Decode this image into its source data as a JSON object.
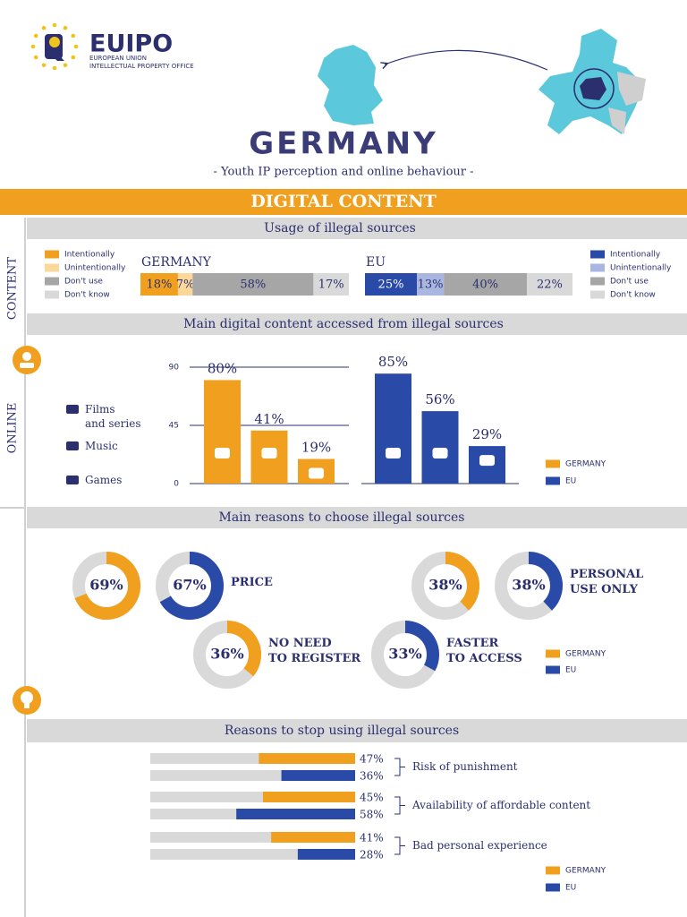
{
  "header": {
    "logo": "EUIPO",
    "logo_line1": "EUROPEAN UNION",
    "logo_line2": "INTELLECTUAL PROPERTY OFFICE",
    "title": "GERMANY",
    "subtitle": "- Youth IP perception and online behaviour -"
  },
  "banner": "DIGITAL CONTENT",
  "side_labels": [
    "CONTENT",
    "ONLINE"
  ],
  "chart_data": [
    {
      "type": "stacked_bar",
      "title": "Usage of illegal sources",
      "categories": [
        "GERMANY",
        "EU"
      ],
      "xlim": [
        0,
        100
      ],
      "series": [
        {
          "name": "Intentionally",
          "colors": [
            "#f0a01e",
            "#2a4aa8"
          ],
          "values": [
            18,
            25
          ],
          "value_labels": [
            "18%",
            "25%"
          ]
        },
        {
          "name": "Unintentionally",
          "colors": [
            "#fbd89a",
            "#a9b7e0"
          ],
          "values": [
            7,
            13
          ],
          "value_labels": [
            "7%",
            "13%"
          ]
        },
        {
          "name": "Don't use",
          "colors": [
            "#a6a6a6",
            "#a6a6a6"
          ],
          "values": [
            58,
            40
          ],
          "value_labels": [
            "58%",
            "40%"
          ]
        },
        {
          "name": "Don't know",
          "colors": [
            "#d9d9d9",
            "#d9d9d9"
          ],
          "values": [
            17,
            22
          ],
          "value_labels": [
            "17%",
            "22%"
          ]
        }
      ]
    },
    {
      "type": "grouped_bar",
      "title": "Main digital content accessed from illegal sources",
      "categories": [
        "Films\nand series",
        "Music",
        "Games"
      ],
      "ylim": [
        0,
        90
      ],
      "yticks": [
        0,
        45,
        90
      ],
      "grid": true,
      "series": [
        {
          "name": "GERMANY",
          "color": "#f0a01e",
          "values": [
            80,
            41,
            19
          ],
          "value_labels": [
            "80%",
            "41%",
            "19%"
          ]
        },
        {
          "name": "EU",
          "color": "#2a4aa8",
          "values": [
            85,
            56,
            29
          ],
          "value_labels": [
            "85%",
            "56%",
            "29%"
          ]
        }
      ]
    },
    {
      "type": "donut",
      "title": "Main reasons to choose illegal sources",
      "categories": [
        "PRICE",
        "PERSONAL\nUSE ONLY",
        "NO NEED\nTO REGISTER",
        "FASTER\nTO ACCESS"
      ],
      "xlim": [
        0,
        100
      ],
      "series": [
        {
          "name": "GERMANY",
          "color": "#f0a01e",
          "values": [
            69,
            38,
            36,
            null
          ],
          "value_labels": [
            "69%",
            "38%",
            "36%",
            null
          ]
        },
        {
          "name": "EU",
          "color": "#2a4aa8",
          "values": [
            67,
            38,
            null,
            33
          ],
          "value_labels": [
            "67%",
            "38%",
            null,
            "33%"
          ]
        }
      ]
    },
    {
      "type": "hbar_pair",
      "title": "Reasons to stop using illegal sources",
      "categories": [
        "Risk of punishment",
        "Availability of affordable content",
        "Bad personal experience"
      ],
      "xlim": [
        0,
        100
      ],
      "series": [
        {
          "name": "GERMANY",
          "color": "#f0a01e",
          "values": [
            47,
            45,
            41
          ],
          "value_labels": [
            "47%",
            "45%",
            "41%"
          ]
        },
        {
          "name": "EU",
          "color": "#2a4aa8",
          "values": [
            36,
            58,
            28
          ],
          "value_labels": [
            "36%",
            "58%",
            "28%"
          ]
        }
      ]
    }
  ]
}
